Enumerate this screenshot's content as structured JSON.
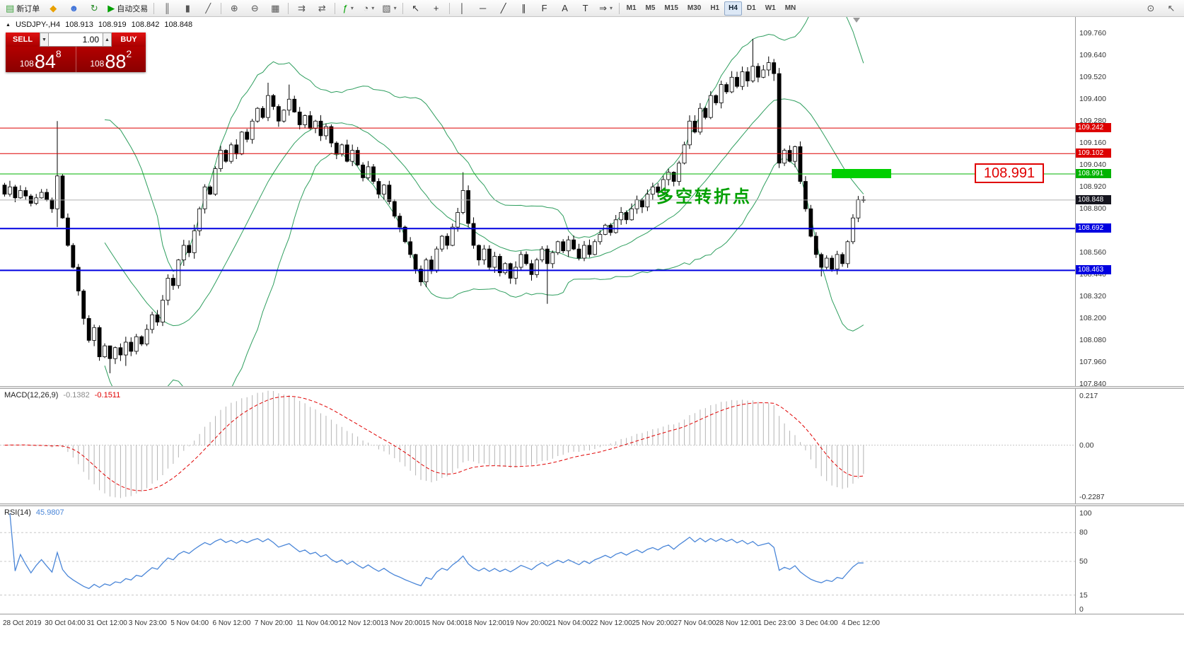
{
  "toolbar": {
    "dropdown_glyph": "▾",
    "items": [
      {
        "name": "new-order-button",
        "glyph": "▤",
        "glyph_color": "#3fa13f",
        "label": "新订单"
      },
      {
        "name": "layout-icon",
        "glyph": "◆",
        "glyph_color": "#e8a000"
      },
      {
        "name": "market-watch-icon",
        "glyph": "☻",
        "glyph_color": "#3a6fd8"
      },
      {
        "name": "navigator-icon",
        "glyph": "↻",
        "glyph_color": "#2d8f2d"
      },
      {
        "name": "autotrading-button",
        "glyph": "▶",
        "glyph_color": "#00a000",
        "label": "自动交易"
      },
      "|",
      {
        "name": "bar-chart-icon",
        "glyph": "║",
        "glyph_color": "#555555"
      },
      {
        "name": "candlestick-chart-icon",
        "glyph": "▮",
        "glyph_color": "#555555"
      },
      {
        "name": "line-chart-icon",
        "glyph": "╱",
        "glyph_color": "#555555"
      },
      "|",
      {
        "name": "zoom-in-icon",
        "glyph": "⊕",
        "glyph_color": "#555555"
      },
      {
        "name": "zoom-out-icon",
        "glyph": "⊖",
        "glyph_color": "#555555"
      },
      {
        "name": "tile-windows-icon",
        "glyph": "▦",
        "glyph_color": "#555555"
      },
      "|",
      {
        "name": "auto-scroll-icon",
        "glyph": "⇉",
        "glyph_color": "#555555"
      },
      {
        "name": "chart-shift-icon",
        "glyph": "⇄",
        "glyph_color": "#555555"
      },
      "|",
      {
        "name": "indicators-icon",
        "glyph": "ƒ",
        "glyph_color": "#00a000",
        "dropdown": true
      },
      {
        "name": "periods-icon",
        "glyph": "◔",
        "glyph_color": "#555555",
        "dropdown": true
      },
      {
        "name": "templates-icon",
        "glyph": "▧",
        "glyph_color": "#555555",
        "dropdown": true
      },
      "|",
      {
        "name": "cursor-icon",
        "glyph": "↖",
        "glyph_color": "#333333"
      },
      {
        "name": "crosshair-icon",
        "glyph": "+",
        "glyph_color": "#333333"
      },
      "|",
      {
        "name": "vertical-line-icon",
        "glyph": "│",
        "glyph_color": "#333333"
      },
      {
        "name": "horizontal-line-icon",
        "glyph": "─",
        "glyph_color": "#333333"
      },
      {
        "name": "trendline-icon",
        "glyph": "╱",
        "glyph_color": "#333333"
      },
      {
        "name": "channel-icon",
        "glyph": "∥",
        "glyph_color": "#333333"
      },
      {
        "name": "fibonacci-icon",
        "glyph": "F",
        "glyph_color": "#333333"
      },
      {
        "name": "text-icon",
        "glyph": "A",
        "glyph_color": "#333333"
      },
      {
        "name": "text-label-icon",
        "glyph": "T",
        "glyph_color": "#333333"
      },
      {
        "name": "arrows-icon",
        "glyph": "⇒",
        "glyph_color": "#333333",
        "dropdown": true
      }
    ],
    "timeframes": [
      "M1",
      "M5",
      "M15",
      "M30",
      "H1",
      "H4",
      "D1",
      "W1",
      "MN"
    ],
    "active_timeframe": "H4",
    "right_icons": [
      {
        "name": "magnifier-icon",
        "glyph": "⊙"
      },
      {
        "name": "pointer-icon",
        "glyph": "↖"
      }
    ]
  },
  "symbol_header": {
    "marker": "▲",
    "symbol": "USDJPY-,H4",
    "open": "108.913",
    "high": "108.919",
    "low": "108.842",
    "close": "108.848"
  },
  "trade_panel": {
    "sell_label": "SELL",
    "buy_label": "BUY",
    "volume": "1.00",
    "spin_up": "▲",
    "spin_down": "▼",
    "sell_prefix": "108",
    "sell_big": "84",
    "sell_sup": "8",
    "buy_prefix": "108",
    "buy_big": "88",
    "buy_sup": "2"
  },
  "chart": {
    "price_axis": [
      "109.760",
      "109.640",
      "109.520",
      "109.400",
      "109.280",
      "109.160",
      "109.040",
      "108.920",
      "108.800",
      "108.680",
      "108.560",
      "108.440",
      "108.320",
      "108.200",
      "108.080",
      "107.960",
      "107.840"
    ],
    "hlines": [
      {
        "price": 109.242,
        "tag": "109.242",
        "color": "#dd0000",
        "width": 1,
        "name": "resistance-line-109242"
      },
      {
        "price": 109.102,
        "tag": "109.102",
        "color": "#dd0000",
        "width": 1,
        "name": "resistance-line-109102"
      },
      {
        "price": 108.991,
        "tag": "108.991",
        "color": "#00b300",
        "width": 1,
        "name": "pivot-line-108991"
      },
      {
        "price": 108.692,
        "tag": "108.692",
        "color": "#0000e0",
        "width": 2,
        "name": "support-line-108692"
      },
      {
        "price": 108.463,
        "tag": "108.463",
        "color": "#0000e0",
        "width": 2,
        "name": "support-line-108463"
      }
    ],
    "bid": {
      "price": 108.848,
      "tag": "108.848",
      "tag_color": "#15151f",
      "line_color": "#b0b0b0"
    },
    "annotation": {
      "text": "多空转折点",
      "color": "#00a000"
    },
    "big_label": {
      "text": "108.991",
      "color": "#e00000"
    },
    "highlight_color": "#00cf00"
  },
  "macd_panel": {
    "title": "MACD(12,26,9)",
    "value_main": "-0.1382",
    "value_signal": "-0.1511"
  },
  "rsi_panel": {
    "title": "RSI(14)",
    "value": "45.9807"
  },
  "chart_data": {
    "type": "candlestick",
    "symbol": "USDJPY-",
    "timeframe": "H4",
    "ylim": [
      107.84,
      109.76
    ],
    "open_first": 108.93,
    "closes": [
      108.88,
      108.92,
      108.86,
      108.9,
      108.87,
      108.83,
      108.86,
      108.89,
      108.85,
      108.8,
      108.98,
      108.75,
      108.6,
      108.48,
      108.35,
      108.2,
      108.08,
      108.15,
      107.99,
      108.05,
      107.98,
      108.04,
      108.0,
      108.07,
      108.02,
      108.1,
      108.06,
      108.14,
      108.22,
      108.18,
      108.3,
      108.42,
      108.38,
      108.52,
      108.6,
      108.56,
      108.68,
      108.8,
      108.92,
      108.88,
      109.02,
      109.12,
      109.06,
      109.15,
      109.1,
      109.22,
      109.18,
      109.28,
      109.35,
      109.3,
      109.42,
      109.36,
      109.28,
      109.34,
      109.4,
      109.33,
      109.26,
      109.31,
      109.24,
      109.28,
      109.2,
      109.25,
      109.16,
      109.1,
      109.15,
      109.06,
      109.12,
      109.04,
      108.97,
      109.03,
      108.95,
      108.88,
      108.93,
      108.84,
      108.76,
      108.7,
      108.62,
      108.55,
      108.47,
      108.4,
      108.52,
      108.46,
      108.58,
      108.65,
      108.6,
      108.7,
      108.78,
      108.9,
      108.72,
      108.6,
      108.52,
      108.58,
      108.48,
      108.54,
      108.45,
      108.5,
      108.42,
      108.48,
      108.55,
      108.5,
      108.44,
      108.52,
      108.58,
      108.5,
      108.56,
      108.62,
      108.57,
      108.63,
      108.58,
      108.53,
      108.6,
      108.55,
      108.62,
      108.66,
      108.71,
      108.67,
      108.74,
      108.78,
      108.74,
      108.8,
      108.85,
      108.81,
      108.88,
      108.92,
      108.89,
      108.96,
      109.0,
      108.95,
      109.05,
      109.15,
      109.28,
      109.22,
      109.35,
      109.3,
      109.42,
      109.38,
      109.48,
      109.44,
      109.52,
      109.47,
      109.55,
      109.5,
      109.58,
      109.52,
      109.56,
      109.6,
      109.54,
      109.05,
      109.12,
      109.06,
      109.14,
      108.95,
      108.8,
      108.65,
      108.55,
      108.48,
      108.53,
      108.47,
      108.55,
      108.5,
      108.62,
      108.75,
      108.85,
      108.848
    ],
    "wicks": {
      "10": [
        109.28,
        108.7
      ],
      "20": [
        108.05,
        107.9
      ],
      "23": [
        108.1,
        107.94
      ],
      "50": [
        109.49,
        109.28
      ],
      "54": [
        109.48,
        109.31
      ],
      "87": [
        109.0,
        108.77
      ],
      "103": [
        108.6,
        108.28
      ],
      "142": [
        109.73,
        109.49
      ],
      "146": [
        109.62,
        109.5
      ],
      "155": [
        108.56,
        108.43
      ],
      "158": [
        108.57,
        108.44
      ]
    },
    "x_labels": [
      "28 Oct 2019",
      "30 Oct 04:00",
      "31 Oct 12:00",
      "3 Nov 23:00",
      "5 Nov 04:00",
      "6 Nov 12:00",
      "7 Nov 20:00",
      "11 Nov 04:00",
      "12 Nov 12:00",
      "13 Nov 20:00",
      "15 Nov 04:00",
      "18 Nov 12:00",
      "19 Nov 20:00",
      "21 Nov 04:00",
      "22 Nov 12:00",
      "25 Nov 20:00",
      "27 Nov 04:00",
      "28 Nov 12:00",
      "1 Dec 23:00",
      "3 Dec 04:00",
      "4 Dec 12:00"
    ],
    "indicators": {
      "bollinger": {
        "period": 20,
        "dev": 2,
        "color": "#2e9e5e"
      },
      "macd": {
        "fast": 12,
        "slow": 26,
        "signal": 9,
        "ylim": [
          -0.2287,
          0.217
        ],
        "axis": [
          "0.217",
          "0.00",
          "-0.2287"
        ],
        "hist_color": "#b4b4b4",
        "signal_color": "#e00000"
      },
      "rsi": {
        "period": 14,
        "value": 45.9807,
        "levels": [
          80,
          50,
          15
        ],
        "axis": [
          "100",
          "80",
          "50",
          "15",
          "0"
        ],
        "color": "#4a86d8"
      }
    }
  }
}
